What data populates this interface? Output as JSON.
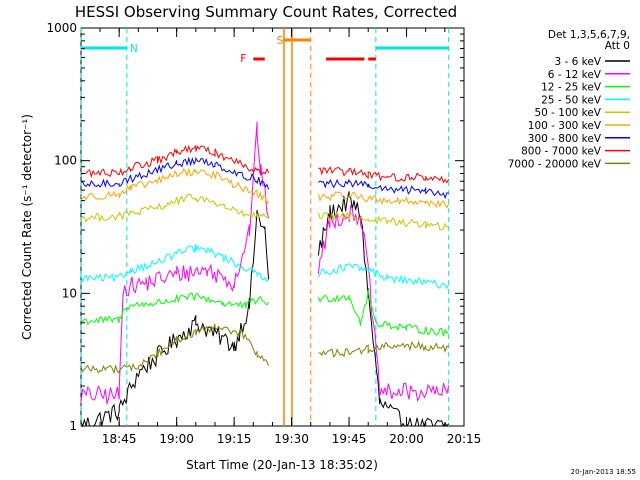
{
  "chart_data": {
    "type": "line",
    "title": "HESSI Observing Summary Count Rates, Corrected",
    "xlabel": "Start Time (20-Jan-13 18:35:02)",
    "ylabel": "Corrected Count Rate (s⁻¹ detector⁻¹)",
    "y_scale": "log",
    "xlim": [
      "18:35:02",
      "20:15"
    ],
    "ylim": [
      1,
      1000
    ],
    "x_ticks": [
      "18:45",
      "19:00",
      "19:15",
      "19:30",
      "19:45",
      "20:00",
      "20:15"
    ],
    "y_ticks": [
      "1",
      "10",
      "100",
      "1000"
    ],
    "legend_header": [
      "Det 1,3,5,6,7,9,",
      "Att 0"
    ],
    "legend_position": "right",
    "footer": "20-Jan-2013 18:55",
    "annotations": [
      {
        "label": "N",
        "color": "#00e5e5",
        "kind": "night",
        "spans": [
          [
            "18:35",
            "18:47"
          ],
          [
            "19:52",
            "20:11"
          ]
        ]
      },
      {
        "label": "S",
        "color": "#ff8000",
        "kind": "saa",
        "spans": [
          [
            "19:28",
            "19:35"
          ]
        ]
      },
      {
        "label": "F",
        "color": "#ff0000",
        "kind": "flare",
        "spans": [
          [
            "19:20",
            "19:23"
          ],
          [
            "19:39",
            "19:49"
          ],
          [
            "19:50",
            "19:52"
          ]
        ]
      }
    ],
    "gaps": [
      [
        "19:24",
        "19:37"
      ]
    ],
    "series": [
      {
        "name": "3 - 6 keV",
        "color": "#000000",
        "points": [
          [
            "18:35",
            1.0
          ],
          [
            "18:45",
            1.3
          ],
          [
            "18:50",
            2.5
          ],
          [
            "19:00",
            4.5
          ],
          [
            "19:05",
            6.0
          ],
          [
            "19:10",
            5.0
          ],
          [
            "19:15",
            4.0
          ],
          [
            "19:19",
            8.0
          ],
          [
            "19:21",
            40
          ],
          [
            "19:23",
            30
          ],
          [
            "19:24",
            12
          ],
          [
            "19:37",
            20
          ],
          [
            "19:40",
            40
          ],
          [
            "19:45",
            50
          ],
          [
            "19:48",
            40
          ],
          [
            "19:50",
            10
          ],
          [
            "19:53",
            1.5
          ],
          [
            "20:00",
            1.0
          ],
          [
            "20:11",
            1.0
          ]
        ]
      },
      {
        "name": "6 - 12 keV",
        "color": "#ff00ff",
        "points": [
          [
            "18:35",
            1.7
          ],
          [
            "18:45",
            1.7
          ],
          [
            "18:46",
            11
          ],
          [
            "18:52",
            12
          ],
          [
            "19:00",
            14
          ],
          [
            "19:08",
            15
          ],
          [
            "19:15",
            12
          ],
          [
            "19:19",
            30
          ],
          [
            "19:21",
            170
          ],
          [
            "19:22",
            80
          ],
          [
            "19:24",
            40
          ],
          [
            "19:37",
            15
          ],
          [
            "19:40",
            35
          ],
          [
            "19:45",
            40
          ],
          [
            "19:48",
            38
          ],
          [
            "19:50",
            15
          ],
          [
            "19:53",
            1.8
          ],
          [
            "20:11",
            1.8
          ]
        ]
      },
      {
        "name": "12 - 25 keV",
        "color": "#00ff00",
        "points": [
          [
            "18:35",
            6.2
          ],
          [
            "18:45",
            6.3
          ],
          [
            "18:47",
            8.0
          ],
          [
            "18:55",
            8.5
          ],
          [
            "19:05",
            9.5
          ],
          [
            "19:12",
            8.5
          ],
          [
            "19:18",
            8.0
          ],
          [
            "19:21",
            9.0
          ],
          [
            "19:24",
            8.5
          ],
          [
            "19:37",
            9.0
          ],
          [
            "19:45",
            9.5
          ],
          [
            "19:48",
            6.0
          ],
          [
            "19:50",
            10
          ],
          [
            "19:52",
            6.0
          ],
          [
            "20:00",
            5.5
          ],
          [
            "20:11",
            5.0
          ]
        ]
      },
      {
        "name": "25 - 50 keV",
        "color": "#00ffff",
        "points": [
          [
            "18:35",
            13
          ],
          [
            "18:45",
            13
          ],
          [
            "18:48",
            15
          ],
          [
            "18:55",
            17
          ],
          [
            "19:00",
            20
          ],
          [
            "19:05",
            22
          ],
          [
            "19:10",
            20
          ],
          [
            "19:17",
            16
          ],
          [
            "19:21",
            14
          ],
          [
            "19:24",
            13
          ],
          [
            "19:37",
            14
          ],
          [
            "19:45",
            16
          ],
          [
            "19:50",
            15
          ],
          [
            "19:55",
            13
          ],
          [
            "20:05",
            12
          ],
          [
            "20:11",
            11.5
          ]
        ]
      },
      {
        "name": "50 - 100 keV",
        "color": "#c8c800",
        "points": [
          [
            "18:35",
            37
          ],
          [
            "18:45",
            38
          ],
          [
            "18:48",
            40
          ],
          [
            "18:55",
            44
          ],
          [
            "19:00",
            50
          ],
          [
            "19:05",
            53
          ],
          [
            "19:10",
            48
          ],
          [
            "19:17",
            40
          ],
          [
            "19:21",
            38
          ],
          [
            "19:24",
            37
          ],
          [
            "19:37",
            38
          ],
          [
            "19:45",
            38
          ],
          [
            "19:50",
            36
          ],
          [
            "19:55",
            35
          ],
          [
            "20:05",
            33
          ],
          [
            "20:11",
            31
          ]
        ]
      },
      {
        "name": "100 - 300 keV",
        "color": "#ffa500",
        "points": [
          [
            "18:35",
            53
          ],
          [
            "18:45",
            56
          ],
          [
            "18:48",
            62
          ],
          [
            "18:55",
            70
          ],
          [
            "19:00",
            80
          ],
          [
            "19:05",
            83
          ],
          [
            "19:10",
            78
          ],
          [
            "19:17",
            62
          ],
          [
            "19:21",
            56
          ],
          [
            "19:24",
            50
          ],
          [
            "19:37",
            53
          ],
          [
            "19:45",
            55
          ],
          [
            "19:50",
            52
          ],
          [
            "19:55",
            50
          ],
          [
            "20:05",
            49
          ],
          [
            "20:11",
            46
          ]
        ]
      },
      {
        "name": "300 - 800 keV",
        "color": "#0000ff",
        "points": [
          [
            "18:35",
            65
          ],
          [
            "18:45",
            68
          ],
          [
            "18:48",
            73
          ],
          [
            "18:55",
            85
          ],
          [
            "19:00",
            95
          ],
          [
            "19:05",
            100
          ],
          [
            "19:10",
            95
          ],
          [
            "19:17",
            78
          ],
          [
            "19:21",
            72
          ],
          [
            "19:24",
            65
          ],
          [
            "19:37",
            66
          ],
          [
            "19:45",
            68
          ],
          [
            "19:50",
            65
          ],
          [
            "19:55",
            60
          ],
          [
            "20:05",
            60
          ],
          [
            "20:11",
            55
          ]
        ]
      },
      {
        "name": "800 - 7000 keV",
        "color": "#ff0000",
        "points": [
          [
            "18:35",
            80
          ],
          [
            "18:45",
            82
          ],
          [
            "18:48",
            88
          ],
          [
            "18:55",
            100
          ],
          [
            "19:00",
            115
          ],
          [
            "19:05",
            125
          ],
          [
            "19:10",
            115
          ],
          [
            "19:17",
            95
          ],
          [
            "19:21",
            85
          ],
          [
            "19:24",
            80
          ],
          [
            "19:37",
            85
          ],
          [
            "19:45",
            82
          ],
          [
            "19:50",
            78
          ],
          [
            "19:55",
            75
          ],
          [
            "20:05",
            75
          ],
          [
            "20:11",
            70
          ]
        ]
      },
      {
        "name": "7000 - 20000 keV",
        "color": "#808000",
        "points": [
          [
            "18:35",
            2.7
          ],
          [
            "18:45",
            2.7
          ],
          [
            "18:50",
            2.8
          ],
          [
            "18:55",
            3.5
          ],
          [
            "19:00",
            4.5
          ],
          [
            "19:05",
            5.0
          ],
          [
            "19:10",
            5.5
          ],
          [
            "19:17",
            5.0
          ],
          [
            "19:21",
            3.5
          ],
          [
            "19:24",
            3.0
          ],
          [
            "19:37",
            3.5
          ],
          [
            "19:45",
            3.6
          ],
          [
            "19:50",
            3.8
          ],
          [
            "19:55",
            4.0
          ],
          [
            "20:05",
            4.0
          ],
          [
            "20:11",
            3.8
          ]
        ]
      }
    ]
  }
}
